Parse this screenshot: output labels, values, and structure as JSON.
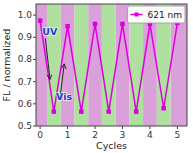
{
  "chart_data": {
    "type": "line",
    "x_label": "Cycles",
    "y_label": "FL / normalized",
    "x": [
      0,
      0.5,
      1,
      1.5,
      2,
      2.5,
      3,
      3.5,
      4,
      4.5,
      5
    ],
    "series": [
      {
        "name": "621 nm",
        "color": "#dd00dd",
        "marker": "square",
        "values": [
          0.975,
          0.565,
          0.95,
          0.565,
          0.96,
          0.565,
          0.96,
          0.565,
          0.96,
          0.58,
          0.965
        ]
      }
    ],
    "xlim": [
      -0.15,
      5.35
    ],
    "ylim": [
      0.5,
      1.05
    ],
    "xticks": [
      0,
      1,
      2,
      3,
      4,
      5
    ],
    "yticks": [
      0.5,
      0.6,
      0.7,
      0.8,
      0.9,
      {
        "value": 1.0,
        "label": "1.0"
      }
    ],
    "legend": "upper right",
    "bands": [
      {
        "color": "#d9a0d9",
        "ranges": [
          [
            -0.15,
            0.25
          ],
          [
            0.75,
            1.25
          ],
          [
            1.75,
            2.25
          ],
          [
            2.75,
            3.25
          ],
          [
            3.75,
            4.25
          ],
          [
            4.75,
            5.35
          ]
        ]
      },
      {
        "color": "#b0e0a0",
        "ranges": [
          [
            0.25,
            0.75
          ],
          [
            1.25,
            1.75
          ],
          [
            2.25,
            2.75
          ],
          [
            3.25,
            3.75
          ],
          [
            4.25,
            4.75
          ]
        ]
      }
    ],
    "annotations": [
      {
        "text": "UV",
        "x": 0.08,
        "y": 0.91,
        "color": "#1a3fcc",
        "arrow_from": [
          0.19,
          0.895
        ],
        "arrow_to": [
          0.36,
          0.71
        ]
      },
      {
        "text": "Vis",
        "x": 0.58,
        "y": 0.615,
        "color": "#1a3fcc",
        "arrow_from": [
          0.72,
          0.625
        ],
        "arrow_to": [
          0.88,
          0.78
        ]
      }
    ]
  }
}
